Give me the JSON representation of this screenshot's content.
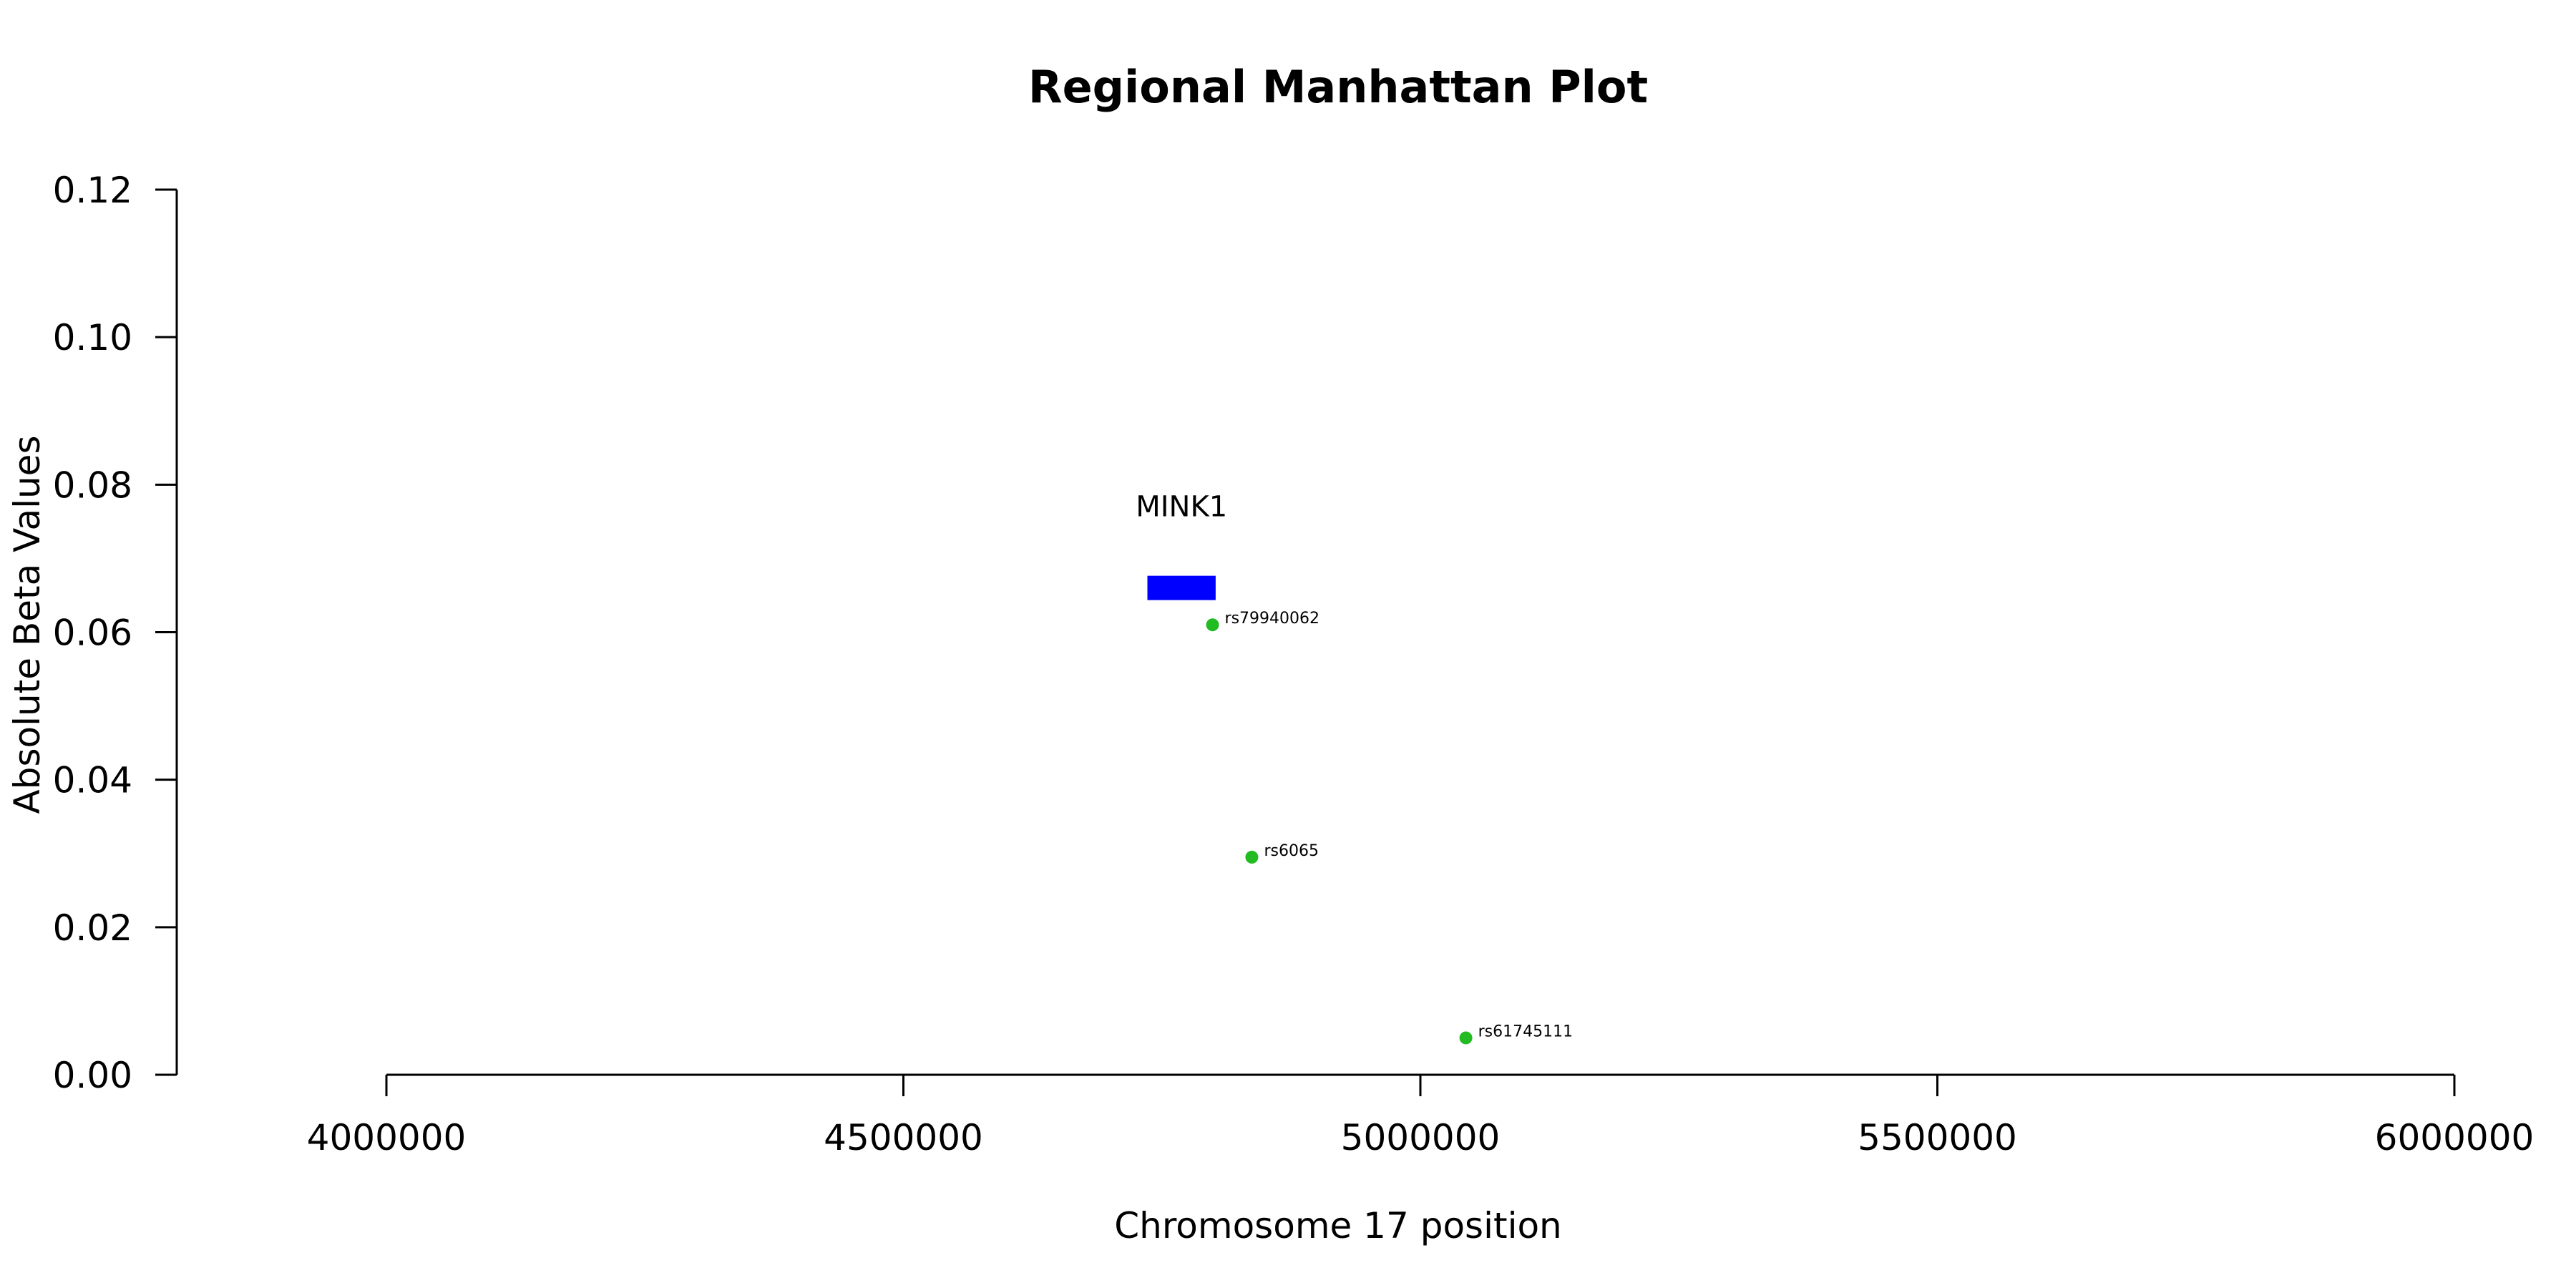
{
  "chart_data": {
    "type": "scatter",
    "title": "Regional Manhattan Plot",
    "xlabel": "Chromosome 17 position",
    "ylabel": "Absolute Beta Values",
    "xlim": [
      4000000,
      6000000
    ],
    "ylim": [
      0,
      0.12
    ],
    "x_ticks": [
      4000000,
      4500000,
      5000000,
      5500000,
      6000000
    ],
    "x_tick_labels": [
      "4000000",
      "4500000",
      "5000000",
      "5500000",
      "6000000"
    ],
    "y_ticks": [
      0,
      0.02,
      0.04,
      0.06,
      0.08,
      0.1,
      0.12
    ],
    "y_tick_labels": [
      "0.00",
      "0.02",
      "0.04",
      "0.06",
      "0.08",
      "0.10",
      "0.12"
    ],
    "grid": false,
    "points": [
      {
        "label": "rs79940062",
        "x": 4799000,
        "y": 0.061
      },
      {
        "label": "rs6065",
        "x": 4837000,
        "y": 0.0295
      },
      {
        "label": "rs61745111",
        "x": 5044000,
        "y": 0.005
      }
    ],
    "genes": [
      {
        "label": "MINK1",
        "start": 4736000,
        "end": 4802000,
        "y": 0.066
      }
    ],
    "point_color": "#22bb22",
    "gene_color": "#0000ff"
  }
}
